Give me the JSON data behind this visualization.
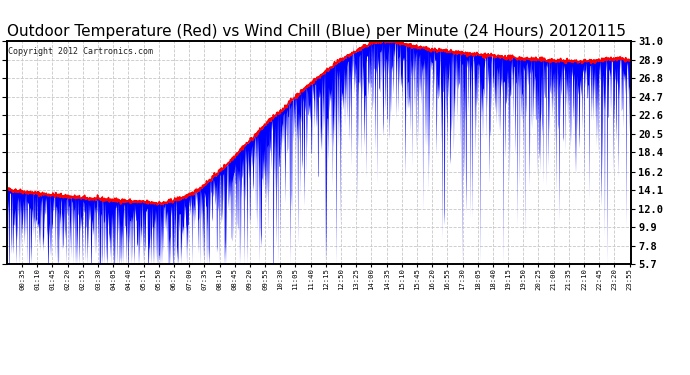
{
  "title": "Outdoor Temperature (Red) vs Wind Chill (Blue) per Minute (24 Hours) 20120115",
  "copyright": "Copyright 2012 Cartronics.com",
  "yticks": [
    31.0,
    28.9,
    26.8,
    24.7,
    22.6,
    20.5,
    18.4,
    16.2,
    14.1,
    12.0,
    9.9,
    7.8,
    5.7
  ],
  "ymin": 5.7,
  "ymax": 31.0,
  "bg_color": "#ffffff",
  "red_color": "#ff0000",
  "blue_color": "#0000ff",
  "grid_color": "#c8c8c8",
  "title_fontsize": 11,
  "copyright_fontsize": 6,
  "temp_keypoints_hours": [
    0,
    0.5,
    1,
    2,
    3,
    4,
    5,
    6,
    7,
    7.5,
    8,
    8.5,
    9,
    9.5,
    10,
    10.5,
    11,
    11.5,
    12,
    12.5,
    13,
    13.5,
    14,
    14.5,
    15,
    15.5,
    16,
    17,
    18,
    19,
    20,
    21,
    22,
    22.5,
    23,
    23.5,
    23.99
  ],
  "temp_keypoints_vals": [
    14.2,
    14.0,
    13.8,
    13.5,
    13.2,
    13.0,
    12.8,
    12.6,
    13.5,
    14.5,
    15.8,
    17.2,
    18.8,
    20.2,
    21.8,
    23.0,
    24.5,
    25.8,
    27.0,
    28.2,
    29.2,
    30.0,
    30.8,
    31.0,
    30.8,
    30.5,
    30.2,
    29.8,
    29.5,
    29.2,
    29.0,
    28.8,
    28.7,
    28.8,
    28.9,
    29.0,
    28.8
  ],
  "wc_base_keypoints_hours": [
    0,
    0.5,
    1,
    2,
    3,
    4,
    5,
    6,
    7,
    7.5,
    8,
    8.5,
    9,
    9.5,
    10,
    10.5,
    11,
    11.5,
    12,
    12.5,
    13,
    13.5,
    14,
    14.5,
    15,
    15.5,
    16,
    17,
    18,
    19,
    20,
    21,
    22,
    22.5,
    23,
    23.5,
    23.99
  ],
  "wc_base_keypoints_vals": [
    13.5,
    13.2,
    12.8,
    12.5,
    12.2,
    12.0,
    11.8,
    12.0,
    12.8,
    13.8,
    14.5,
    15.8,
    17.0,
    18.5,
    19.8,
    21.2,
    22.5,
    23.8,
    25.2,
    26.5,
    27.8,
    29.0,
    29.8,
    30.5,
    30.0,
    29.8,
    29.5,
    29.0,
    28.5,
    28.0,
    27.8,
    27.5,
    27.2,
    27.5,
    27.8,
    28.0,
    27.8
  ]
}
